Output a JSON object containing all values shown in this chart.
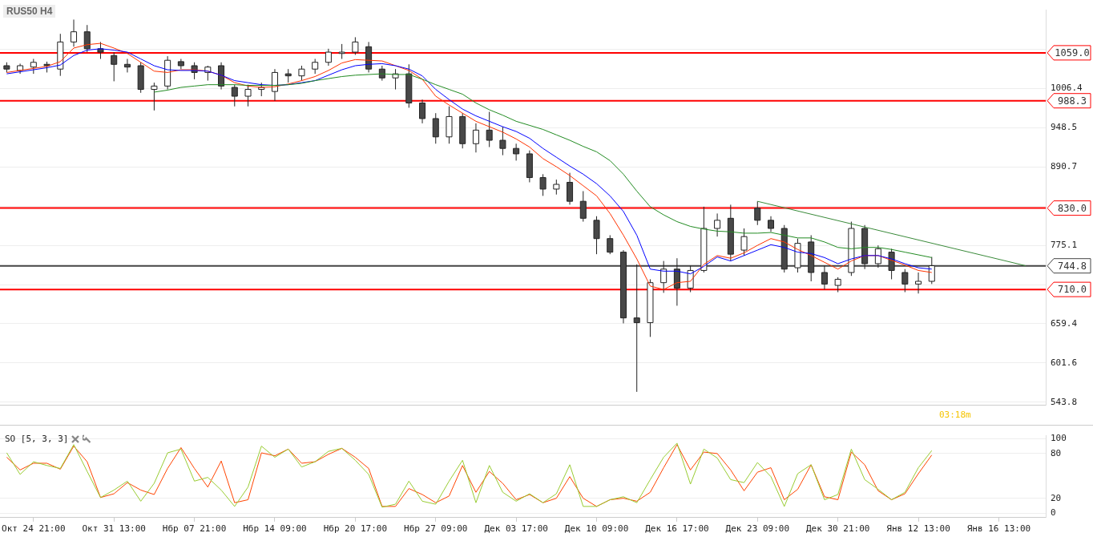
{
  "chart_data": [
    {
      "type": "candlestick",
      "title": "RUS50 H4",
      "categories": [
        null,
        null,
        null,
        null,
        null,
        null,
        null,
        null,
        null,
        null,
        null,
        null,
        null,
        null,
        null,
        null,
        null,
        null,
        null,
        null,
        null,
        null,
        null,
        null,
        null,
        null,
        null,
        null,
        null,
        null,
        null,
        null,
        null,
        null,
        null,
        null,
        null,
        null,
        null,
        null,
        null,
        null,
        null,
        null,
        null,
        null,
        null,
        null,
        null,
        null,
        null,
        null,
        null,
        null,
        null,
        null,
        null,
        null,
        null,
        null,
        null,
        null,
        null,
        null,
        null,
        null,
        null,
        null,
        null,
        null,
        null,
        null,
        null,
        null,
        null,
        null,
        null,
        null
      ],
      "ohlc": [
        [
          1040,
          1045,
          1030,
          1035
        ],
        [
          1033,
          1043,
          1028,
          1040
        ],
        [
          1038,
          1050,
          1028,
          1045
        ],
        [
          1042,
          1046,
          1030,
          1040
        ],
        [
          1035,
          1087,
          1025,
          1075
        ],
        [
          1075,
          1108,
          1068,
          1090
        ],
        [
          1090,
          1100,
          1060,
          1065
        ],
        [
          1065,
          1075,
          1050,
          1060
        ],
        [
          1055,
          1060,
          1017,
          1042
        ],
        [
          1042,
          1050,
          1030,
          1038
        ],
        [
          1040,
          1045,
          1000,
          1005
        ],
        [
          1005,
          1015,
          974,
          1010
        ],
        [
          1010,
          1054,
          1005,
          1048
        ],
        [
          1046,
          1050,
          1035,
          1040
        ],
        [
          1040,
          1045,
          1020,
          1030
        ],
        [
          1030,
          1040,
          1018,
          1038
        ],
        [
          1040,
          1045,
          1005,
          1010
        ],
        [
          1008,
          1012,
          980,
          995
        ],
        [
          995,
          1012,
          980,
          1005
        ],
        [
          1005,
          1015,
          995,
          1008
        ],
        [
          1002,
          1035,
          988,
          1030
        ],
        [
          1028,
          1035,
          1015,
          1025
        ],
        [
          1025,
          1040,
          1018,
          1035
        ],
        [
          1035,
          1050,
          1028,
          1045
        ],
        [
          1045,
          1065,
          1040,
          1060
        ],
        [
          1058,
          1072,
          1050,
          1060
        ],
        [
          1060,
          1082,
          1056,
          1075
        ],
        [
          1068,
          1075,
          1030,
          1035
        ],
        [
          1035,
          1040,
          1018,
          1022
        ],
        [
          1022,
          1035,
          1005,
          1028
        ],
        [
          1028,
          1042,
          978,
          985
        ],
        [
          985,
          990,
          955,
          962
        ],
        [
          962,
          970,
          925,
          935
        ],
        [
          935,
          980,
          925,
          965
        ],
        [
          965,
          970,
          918,
          925
        ],
        [
          925,
          955,
          912,
          945
        ],
        [
          945,
          972,
          920,
          930
        ],
        [
          930,
          950,
          908,
          918
        ],
        [
          918,
          925,
          900,
          910
        ],
        [
          910,
          915,
          868,
          875
        ],
        [
          875,
          880,
          848,
          858
        ],
        [
          858,
          872,
          850,
          865
        ],
        [
          868,
          882,
          835,
          840
        ],
        [
          840,
          855,
          810,
          815
        ],
        [
          812,
          818,
          762,
          785
        ],
        [
          785,
          790,
          762,
          765
        ],
        [
          765,
          768,
          660,
          668
        ],
        [
          668,
          747,
          559,
          661
        ],
        [
          661,
          725,
          640,
          720
        ],
        [
          720,
          752,
          705,
          740
        ],
        [
          740,
          756,
          686,
          712
        ],
        [
          712,
          745,
          706,
          738
        ],
        [
          738,
          832,
          735,
          800
        ],
        [
          800,
          822,
          788,
          812
        ],
        [
          815,
          835,
          752,
          762
        ],
        [
          768,
          800,
          760,
          788
        ],
        [
          830,
          840,
          805,
          812
        ],
        [
          812,
          818,
          795,
          800
        ],
        [
          800,
          805,
          735,
          740
        ],
        [
          742,
          785,
          735,
          778
        ],
        [
          780,
          790,
          722,
          735
        ],
        [
          735,
          745,
          710,
          718
        ],
        [
          716,
          728,
          706,
          725
        ],
        [
          735,
          810,
          730,
          800
        ],
        [
          800,
          805,
          740,
          748
        ],
        [
          748,
          775,
          742,
          770
        ],
        [
          765,
          770,
          725,
          738
        ],
        [
          735,
          740,
          706,
          718
        ],
        [
          718,
          735,
          704,
          722
        ],
        [
          722,
          758,
          718,
          745
        ],
        null,
        null,
        null,
        null,
        null,
        null,
        null,
        null
      ],
      "series": [
        {
          "type": "line",
          "color": "#228b22",
          "values": [
            null,
            null,
            null,
            null,
            null,
            null,
            null,
            null,
            null,
            null,
            null,
            1001,
            1004,
            1008,
            1010,
            1012,
            1012,
            1012,
            1011,
            1011,
            1011,
            1012,
            1014,
            1018,
            1021,
            1024,
            1026,
            1027,
            1028,
            1027,
            1027,
            1020,
            1012,
            1005,
            998,
            985,
            975,
            967,
            958,
            952,
            946,
            938,
            930,
            921,
            913,
            900,
            880,
            855,
            832,
            820,
            810,
            803,
            799,
            796,
            795,
            793,
            793,
            794,
            790,
            786,
            786,
            780,
            772,
            770,
            772,
            772,
            769,
            765,
            761,
            757,
            null,
            null,
            null,
            null,
            null,
            null,
            null,
            null
          ]
        },
        {
          "type": "line",
          "color": "#0000ff",
          "values": [
            1028,
            1031,
            1034,
            1037,
            1041,
            1055,
            1063,
            1065,
            1063,
            1060,
            1050,
            1040,
            1034,
            1033,
            1033,
            1032,
            1026,
            1018,
            1015,
            1012,
            1011,
            1012,
            1015,
            1018,
            1026,
            1034,
            1040,
            1042,
            1043,
            1040,
            1035,
            1025,
            1005,
            990,
            976,
            966,
            958,
            950,
            943,
            933,
            918,
            905,
            892,
            880,
            866,
            848,
            825,
            790,
            740,
            737,
            737,
            733,
            744,
            758,
            752,
            760,
            768,
            776,
            772,
            765,
            763,
            757,
            748,
            755,
            760,
            760,
            755,
            748,
            742,
            740,
            null,
            null,
            null,
            null,
            null,
            null,
            null,
            null
          ]
        },
        {
          "type": "line",
          "color": "#ff3300",
          "values": [
            1030,
            1033,
            1036,
            1039,
            1046,
            1066,
            1071,
            1073,
            1066,
            1058,
            1045,
            1032,
            1030,
            1034,
            1034,
            1032,
            1026,
            1015,
            1010,
            1008,
            1009,
            1013,
            1018,
            1024,
            1033,
            1044,
            1049,
            1048,
            1047,
            1040,
            1033,
            1020,
            995,
            982,
            970,
            958,
            950,
            942,
            932,
            920,
            903,
            891,
            878,
            863,
            848,
            822,
            790,
            755,
            715,
            710,
            720,
            722,
            747,
            760,
            756,
            764,
            775,
            785,
            780,
            769,
            760,
            750,
            740,
            752,
            760,
            760,
            753,
            746,
            738,
            735,
            null,
            null,
            null,
            null,
            null,
            null,
            null,
            null
          ]
        },
        {
          "type": "line",
          "color": "#3a8a3a",
          "values": [
            null,
            null,
            null,
            null,
            null,
            null,
            null,
            null,
            null,
            null,
            null,
            null,
            null,
            null,
            null,
            null,
            null,
            null,
            null,
            null,
            null,
            null,
            null,
            null,
            null,
            null,
            null,
            null,
            null,
            null,
            null,
            null,
            null,
            null,
            null,
            null,
            null,
            null,
            null,
            null,
            null,
            null,
            null,
            null,
            null,
            null,
            null,
            null,
            null,
            null,
            null,
            null,
            null,
            null,
            null,
            null,
            840,
            null,
            null,
            null,
            null,
            null,
            null,
            null,
            null,
            null,
            null,
            null,
            null,
            null,
            null,
            null,
            null,
            null,
            null,
            null,
            745,
            null
          ]
        }
      ],
      "ylim": [
        539,
        1122
      ],
      "yticks": [
        543.8,
        601.6,
        659.4,
        {
          "value": 717.2,
          "label": null
        },
        775.1,
        {
          "value": 832.9,
          "label": null
        },
        890.7,
        948.5,
        1006.4,
        {
          "value": 1064.2,
          "label": null
        }
      ],
      "grid": "y",
      "marker": "none",
      "ref_lines": [
        {
          "axis": "y",
          "value": 1059.0,
          "label": "1059.0",
          "color": "#ff0000"
        },
        {
          "axis": "y",
          "value": 988.3,
          "label": "988.3",
          "color": "#ff0000"
        },
        {
          "axis": "y",
          "value": 830.0,
          "label": "830.0",
          "color": "#ff0000"
        },
        {
          "axis": "y",
          "value": 710.0,
          "label": "710.0",
          "color": "#ff0000"
        },
        {
          "axis": "y",
          "value": 744.8,
          "label": "744.8",
          "color": "#444444"
        }
      ],
      "annotations": [
        "03:18m"
      ]
    },
    {
      "type": "line",
      "title": "SO [5, 3, 3]",
      "categories": [
        null,
        null,
        "Окт 24 21:00",
        null,
        null,
        null,
        null,
        null,
        "Окт 31 13:00",
        null,
        null,
        null,
        null,
        null,
        "Нбр 07 21:00",
        null,
        null,
        null,
        null,
        null,
        "Нбр 14 09:00",
        null,
        null,
        null,
        null,
        null,
        "Нбр 20 17:00",
        null,
        null,
        null,
        null,
        null,
        "Нбр 27 09:00",
        null,
        null,
        null,
        null,
        null,
        "Дек 03 17:00",
        null,
        null,
        null,
        null,
        null,
        "Дек 10 09:00",
        null,
        null,
        null,
        null,
        null,
        "Дек 16 17:00",
        null,
        null,
        null,
        null,
        null,
        "Дек 23 09:00",
        null,
        null,
        null,
        null,
        null,
        "Дек 30 21:00",
        null,
        null,
        null,
        null,
        null,
        "Янв 12 13:00",
        null,
        null,
        null,
        null,
        null,
        "Янв 16 13:00",
        null,
        null,
        null
      ],
      "series": [
        {
          "color": "#99cc33",
          "values": [
            81,
            52,
            69,
            64,
            60,
            92,
            56,
            21,
            31,
            43,
            16,
            40,
            81,
            86,
            43,
            48,
            31,
            9,
            35,
            90,
            75,
            86,
            62,
            69,
            83,
            87,
            71,
            52,
            8,
            12,
            43,
            16,
            12,
            43,
            71,
            14,
            64,
            28,
            16,
            26,
            14,
            26,
            65,
            9,
            9,
            18,
            22,
            14,
            45,
            75,
            94,
            39,
            86,
            74,
            45,
            41,
            68,
            49,
            9,
            53,
            65,
            18,
            25,
            86,
            45,
            32,
            18,
            28,
            61,
            84,
            null,
            null,
            null,
            null,
            null,
            null,
            null,
            null
          ]
        },
        {
          "color": "#ff4400",
          "values": [
            75,
            58,
            67,
            67,
            59,
            90,
            69,
            21,
            26,
            41,
            31,
            25,
            60,
            88,
            60,
            35,
            70,
            14,
            18,
            81,
            77,
            86,
            67,
            69,
            79,
            87,
            75,
            60,
            9,
            9,
            33,
            25,
            14,
            23,
            64,
            28,
            56,
            40,
            18,
            25,
            14,
            20,
            49,
            20,
            9,
            18,
            20,
            16,
            28,
            61,
            92,
            58,
            82,
            80,
            58,
            30,
            55,
            61,
            18,
            32,
            65,
            22,
            18,
            82,
            65,
            30,
            18,
            26,
            53,
            78,
            null,
            null,
            null,
            null,
            null,
            null,
            null,
            null
          ]
        }
      ],
      "ylim": [
        -6,
        104
      ],
      "yticks": [
        0,
        20,
        80,
        100
      ],
      "grid": "y",
      "marker": "none"
    }
  ]
}
